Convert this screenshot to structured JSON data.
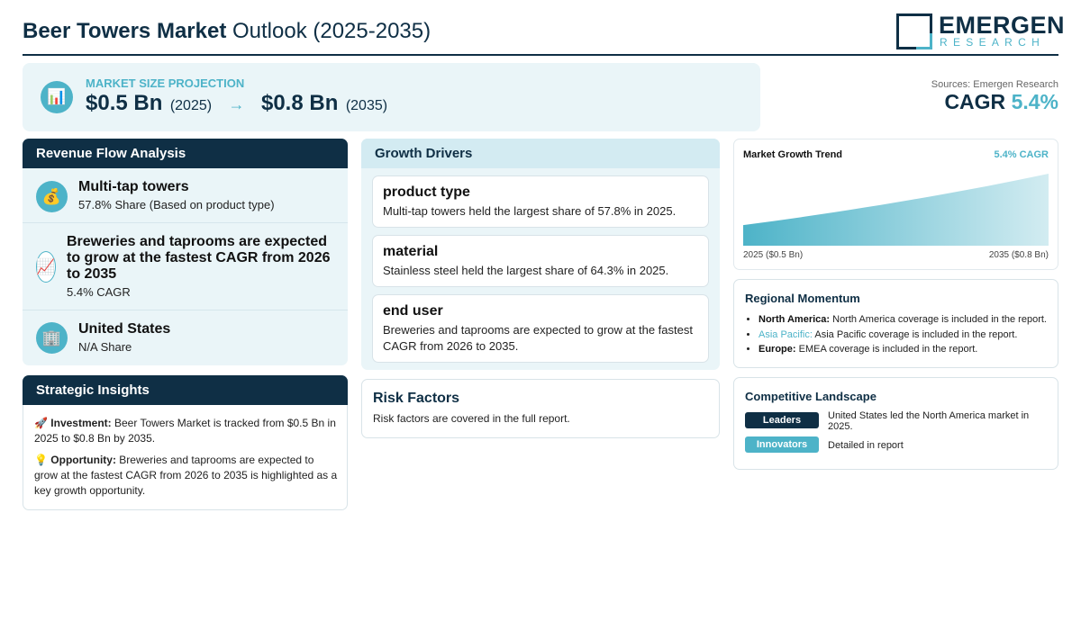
{
  "header": {
    "title_strong": "Beer Towers Market",
    "title_rest": "Outlook (2025-2035)",
    "logo_word": "EMERGEN",
    "logo_sub": "RESEARCH"
  },
  "projection": {
    "icon": "bar-chart-icon",
    "label": "MARKET SIZE PROJECTION",
    "start_value": "$0.5 Bn",
    "start_year": "(2025)",
    "arrow": "→",
    "end_value": "$0.8 Bn",
    "end_year": "(2035)"
  },
  "sources": "Sources: Emergen Research",
  "cagr": {
    "label": "CAGR",
    "value": "5.4%"
  },
  "revenue_flow": {
    "title": "Revenue Flow Analysis",
    "items": [
      {
        "icon": "money-bag-icon",
        "title": "Multi-tap towers",
        "sub": "57.8% Share (Based on product type)"
      },
      {
        "icon": "trend-up-icon",
        "title": "Breweries and taprooms are expected to grow at the fastest CAGR from 2026 to 2035",
        "sub": "5.4% CAGR"
      },
      {
        "icon": "building-icon",
        "title": "United States",
        "sub": "N/A Share"
      }
    ]
  },
  "insights": {
    "title": "Strategic Insights",
    "investment_label": "Investment:",
    "investment_text": "Beer Towers Market is tracked from $0.5 Bn in 2025 to $0.8 Bn by 2035.",
    "opportunity_label": "Opportunity:",
    "opportunity_text": "Breweries and taprooms are expected to grow at the fastest CAGR from 2026 to 2035 is highlighted as a key growth opportunity."
  },
  "growth_drivers": {
    "title": "Growth Drivers",
    "cards": [
      {
        "title": "product type",
        "text": "Multi-tap towers held the largest share of 57.8% in 2025."
      },
      {
        "title": "material",
        "text": "Stainless steel held the largest share of 64.3% in 2025."
      },
      {
        "title": "end user",
        "text": "Breweries and taprooms are expected to grow at the fastest CAGR from 2026 to 2035."
      }
    ]
  },
  "risk": {
    "title": "Risk Factors",
    "text": "Risk factors are covered in the full report."
  },
  "trend": {
    "title": "Market Growth Trend",
    "cagr": "5.4% CAGR",
    "x_start": "2025 ($0.5 Bn)",
    "x_end": "2035 ($0.8 Bn)"
  },
  "chart_data": {
    "type": "area",
    "x": [
      2025,
      2035
    ],
    "values": [
      0.5,
      0.8
    ],
    "xlabel": "",
    "ylabel": ""
  },
  "regional": {
    "title": "Regional Momentum",
    "items": [
      {
        "name": "North America:",
        "text": "North America coverage is included in the report."
      },
      {
        "name": "Asia Pacific:",
        "text": "Asia Pacific coverage is included in the report."
      },
      {
        "name": "Europe:",
        "text": "EMEA coverage is included in the report."
      }
    ]
  },
  "competitive": {
    "title": "Competitive Landscape",
    "rows": [
      {
        "badge": "Leaders",
        "text": "United States led the North America market in 2025."
      },
      {
        "badge": "Innovators",
        "text": "Detailed in report"
      }
    ]
  },
  "colors": {
    "navy": "#0f2f45",
    "teal": "#4db3c8",
    "panel_bg": "#eaf5f8"
  }
}
